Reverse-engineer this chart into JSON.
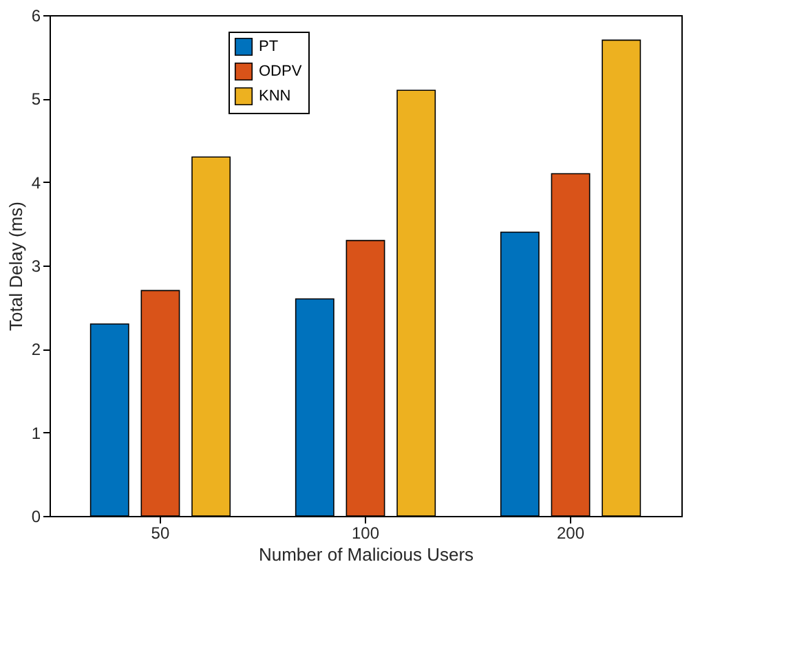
{
  "chart_data": {
    "type": "bar",
    "xlabel": "Number of Malicious Users",
    "ylabel": "Total Delay (ms)",
    "categories": [
      "50",
      "100",
      "200"
    ],
    "series": [
      {
        "name": "PT",
        "color": "#0072bd",
        "values": [
          2.3,
          2.6,
          3.4
        ]
      },
      {
        "name": "ODPV",
        "color": "#d95319",
        "values": [
          2.7,
          3.3,
          4.1
        ]
      },
      {
        "name": "KNN",
        "color": "#edb120",
        "values": [
          4.3,
          5.1,
          5.7
        ]
      }
    ],
    "ylim": [
      0,
      6
    ],
    "yticks": [
      0,
      1,
      2,
      3,
      4,
      5,
      6
    ],
    "grid": false,
    "legend": "top left"
  }
}
